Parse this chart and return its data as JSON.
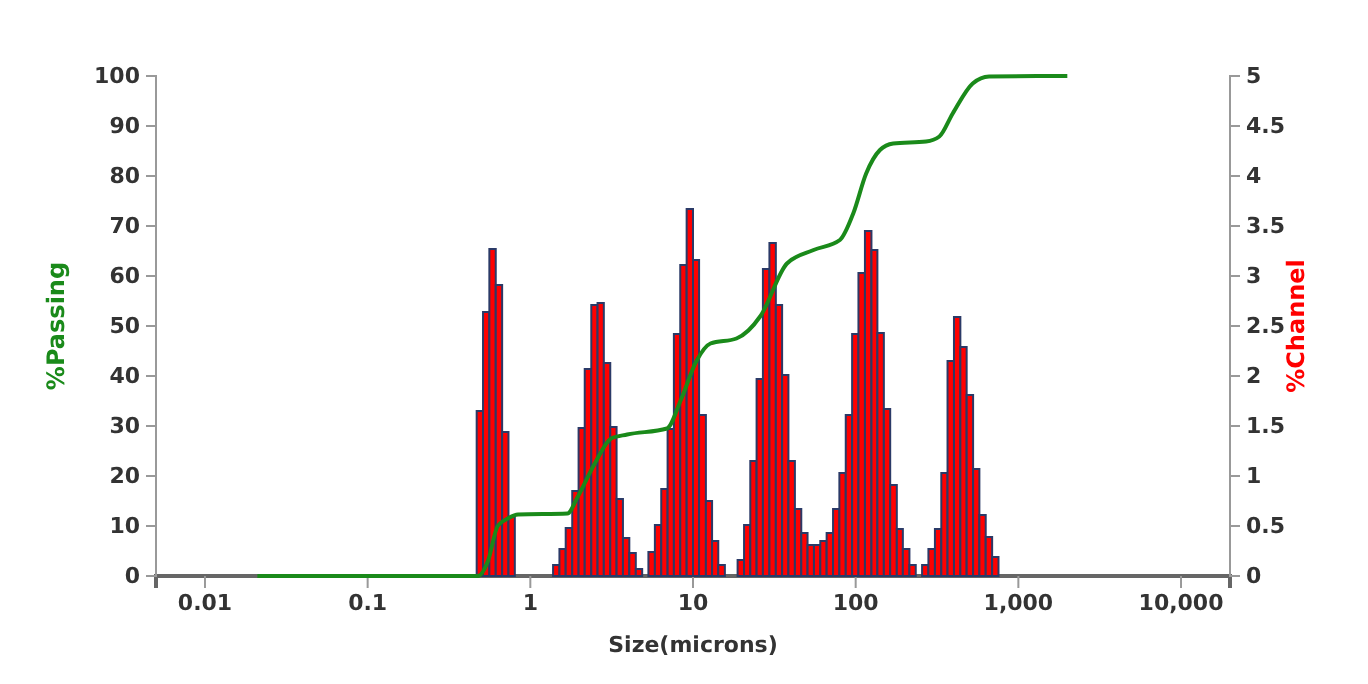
{
  "chart_data": {
    "type": "histogram",
    "xlabel": "Size(microns)",
    "ylabel": "%Passing",
    "y2label": "%Channel",
    "log": "x",
    "xlim": [
      0.005,
      20000
    ],
    "xticks": [
      0.01,
      0.1,
      1,
      10,
      100,
      {
        "value": 1000,
        "label": "1,000"
      },
      {
        "value": 10000,
        "label": "10,000"
      }
    ],
    "ylim": [
      0,
      100
    ],
    "yticks": [
      0,
      10,
      20,
      30,
      40,
      50,
      60,
      70,
      80,
      90,
      100
    ],
    "y2lim": [
      0,
      5
    ],
    "y2ticks": [
      0,
      0.5,
      1,
      1.5,
      2,
      2.5,
      3,
      3.5,
      4,
      4.5,
      5
    ],
    "series": [
      {
        "type": "histogram",
        "axis": "y2",
        "color": "#ff0000",
        "bins": [
          0.468,
          0.512,
          0.56,
          0.613,
          0.671,
          0.734,
          0.803,
          0.879,
          0.962,
          1.05,
          1.15,
          1.26,
          1.38,
          1.51,
          1.65,
          1.81,
          1.98,
          2.16,
          2.37,
          2.59,
          2.83,
          3.1,
          3.39,
          3.71,
          4.06,
          4.45,
          4.87,
          5.32,
          5.83,
          6.38,
          6.98,
          7.63,
          8.35,
          9.14,
          10.0,
          10.9,
          12.0,
          13.1,
          14.3,
          15.7,
          17.2,
          18.8,
          20.6,
          22.5,
          24.6,
          26.9,
          29.5,
          32.3,
          35.3,
          38.6,
          42.3,
          46.3,
          50.6,
          55.4,
          60.6,
          66.3,
          72.6,
          79.4,
          86.9,
          95.1,
          104,
          114,
          125,
          136,
          149,
          163,
          179,
          195,
          214,
          234,
          256,
          280,
          307,
          336,
          367,
          402,
          440,
          481,
          527,
          576,
          630,
          690,
          755
        ],
        "values": [
          1.65,
          2.64,
          3.27,
          2.91,
          1.44,
          0.59,
          0,
          0,
          0,
          0,
          0,
          0,
          0.11,
          0.27,
          0.48,
          0.85,
          1.48,
          2.07,
          2.71,
          2.73,
          2.13,
          1.49,
          0.77,
          0.38,
          0.23,
          0.07,
          0,
          0.24,
          0.51,
          0.87,
          1.47,
          2.42,
          3.11,
          3.67,
          3.16,
          1.61,
          0.75,
          0.35,
          0.11,
          0,
          0,
          0.16,
          0.51,
          1.15,
          1.97,
          3.07,
          3.33,
          2.71,
          2.01,
          1.15,
          0.67,
          0.43,
          0.31,
          0.31,
          0.35,
          0.43,
          0.67,
          1.03,
          1.61,
          2.42,
          3.03,
          3.45,
          3.26,
          2.43,
          1.67,
          0.91,
          0.47,
          0.27,
          0.11,
          0,
          0.11,
          0.27,
          0.47,
          1.03,
          2.15,
          2.59,
          2.29,
          1.81,
          1.07,
          0.61,
          0.39,
          0.19
        ]
      },
      {
        "type": "line",
        "color": "#1a8a1a",
        "x": [
          0.021,
          0.477,
          0.549,
          0.63,
          0.727,
          0.84,
          1.69,
          1.96,
          2.49,
          3.14,
          3.94,
          6.92,
          8.42,
          10.5,
          12.8,
          18.5,
          26,
          37.8,
          55.1,
          80,
          96.6,
          116,
          141,
          170,
          271,
          327,
          395,
          524,
          661,
          2000
        ],
        "values": [
          0,
          0,
          3,
          10,
          11.5,
          12.3,
          12.5,
          15.9,
          22.5,
          27.5,
          28.3,
          29.5,
          35.2,
          43,
          46.5,
          47.5,
          52,
          62.5,
          65.2,
          67.2,
          72.5,
          80.5,
          85.2,
          86.5,
          86.9,
          87.9,
          92.5,
          98.5,
          99.9,
          100
        ]
      }
    ]
  }
}
